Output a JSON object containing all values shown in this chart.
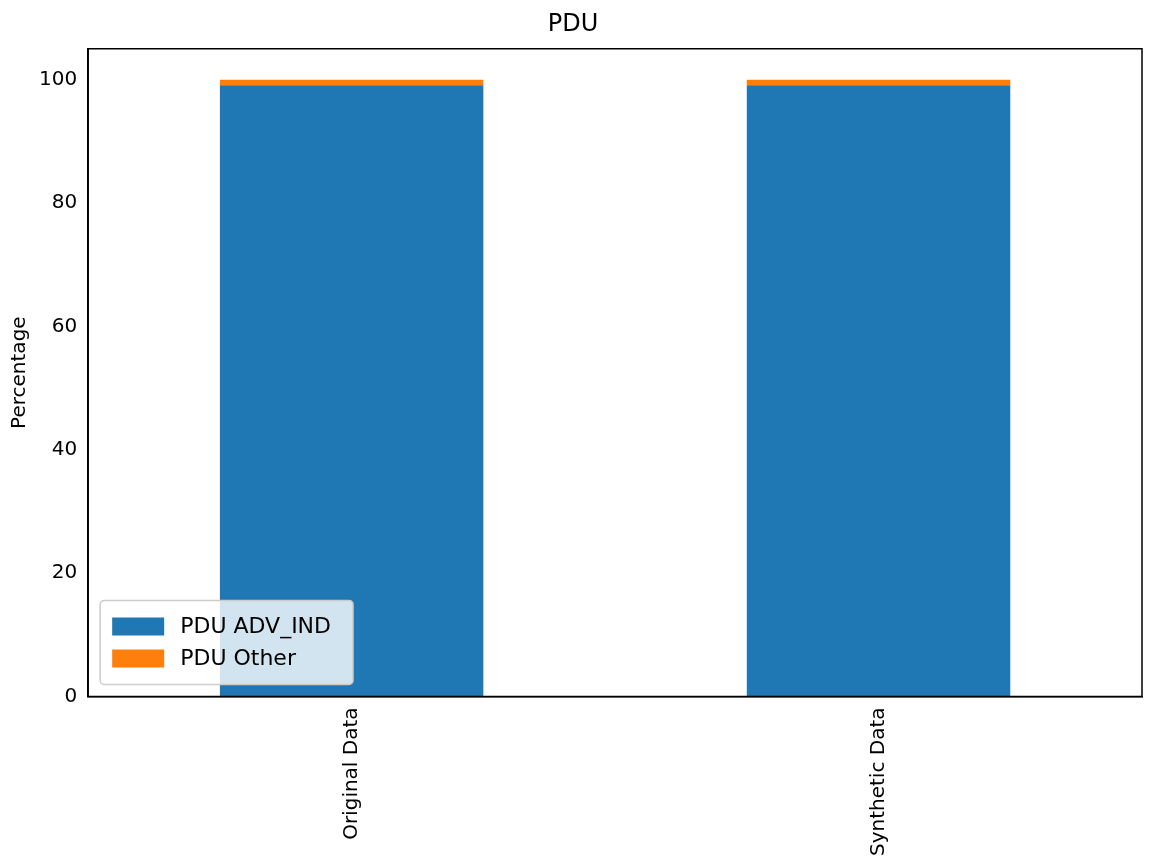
{
  "chart_data": {
    "type": "bar",
    "title": "PDU",
    "ylabel": "Percentage",
    "categories": [
      "Original Data",
      "Synthetic Data"
    ],
    "stacked": true,
    "series": [
      {
        "name": "PDU ADV_IND",
        "color": "#1f77b4",
        "values": [
          99.1,
          99.1
        ]
      },
      {
        "name": "PDU Other",
        "color": "#ff7f0e",
        "values": [
          0.9,
          0.9
        ]
      }
    ],
    "ylim": [
      0,
      105
    ],
    "yticks": [
      0,
      20,
      40,
      60,
      80,
      100
    ],
    "grid": false,
    "legend": "bottom left"
  }
}
